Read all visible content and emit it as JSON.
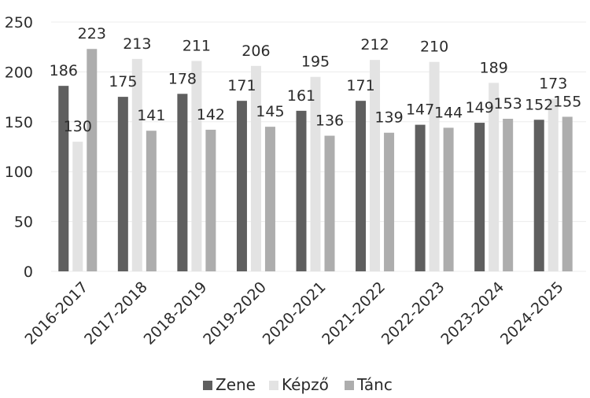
{
  "chart_data": {
    "type": "bar",
    "categories": [
      "2016-2017",
      "2017-2018",
      "2018-2019",
      "2019-2020",
      "2020-2021",
      "2021-2022",
      "2022-2023",
      "2023-2024",
      "2024-2025"
    ],
    "series": [
      {
        "name": "Zene",
        "color": "#5f5f5f",
        "values": [
          186,
          175,
          178,
          171,
          161,
          171,
          147,
          149,
          152
        ]
      },
      {
        "name": "Képző",
        "color": "#e3e3e3",
        "values": [
          130,
          213,
          211,
          206,
          195,
          212,
          210,
          189,
          173
        ]
      },
      {
        "name": "Tánc",
        "color": "#adadad",
        "values": [
          223,
          141,
          142,
          145,
          136,
          139,
          144,
          153,
          155
        ]
      }
    ],
    "ylim": [
      0,
      250
    ],
    "yticks": [
      0,
      50,
      100,
      150,
      200,
      250
    ],
    "xlabel": "",
    "ylabel": "",
    "grid": true,
    "legend_position": "bottom"
  }
}
